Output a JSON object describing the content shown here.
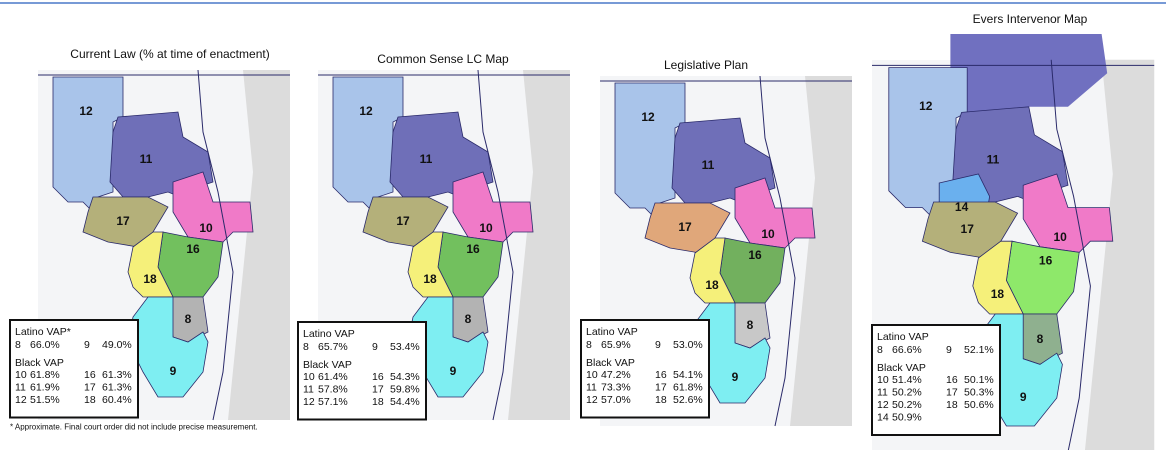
{
  "panels": [
    {
      "title": "Current Law (% at time of enactment)",
      "districts": [
        {
          "label": "12",
          "color": "#a9c4ea"
        },
        {
          "label": "11",
          "color": "#6f6fb8"
        },
        {
          "label": "10",
          "color": "#f07ac8"
        },
        {
          "label": "17",
          "color": "#b4b07a"
        },
        {
          "label": "16",
          "color": "#72c05e"
        },
        {
          "label": "18",
          "color": "#f5f07a"
        },
        {
          "label": "8",
          "color": "#b3b3b3"
        },
        {
          "label": "9",
          "color": "#7eeef2"
        }
      ],
      "latino_label": "Latino VAP*",
      "latino": [
        [
          "8",
          "66.0%"
        ],
        [
          "9",
          "49.0%"
        ]
      ],
      "black_label": "Black VAP",
      "black": [
        [
          [
            "10",
            "61.8%"
          ],
          [
            "16",
            "61.3%"
          ]
        ],
        [
          [
            "11",
            "61.9%"
          ],
          [
            "17",
            "61.3%"
          ]
        ],
        [
          [
            "12",
            "51.5%"
          ],
          [
            "18",
            "60.4%"
          ]
        ]
      ],
      "footnote": "* Approximate. Final court order did not include precise measurement."
    },
    {
      "title": "Common Sense LC Map",
      "districts": [
        {
          "label": "12",
          "color": "#a9c4ea"
        },
        {
          "label": "11",
          "color": "#6f6fb8"
        },
        {
          "label": "10",
          "color": "#f07ac8"
        },
        {
          "label": "17",
          "color": "#b4b07a"
        },
        {
          "label": "16",
          "color": "#72c05e"
        },
        {
          "label": "18",
          "color": "#f5f07a"
        },
        {
          "label": "8",
          "color": "#b3b3b3"
        },
        {
          "label": "9",
          "color": "#7eeef2"
        }
      ],
      "latino_label": "Latino VAP",
      "latino": [
        [
          "8",
          "65.7%"
        ],
        [
          "9",
          "53.4%"
        ]
      ],
      "black_label": "Black VAP",
      "black": [
        [
          [
            "10",
            "61.4%"
          ],
          [
            "16",
            "54.3%"
          ]
        ],
        [
          [
            "11",
            "57.8%"
          ],
          [
            "17",
            "59.8%"
          ]
        ],
        [
          [
            "12",
            "57.1%"
          ],
          [
            "18",
            "54.4%"
          ]
        ]
      ]
    },
    {
      "title": "Legislative Plan",
      "districts": [
        {
          "label": "12",
          "color": "#a9c4ea"
        },
        {
          "label": "11",
          "color": "#6f6fb8"
        },
        {
          "label": "10",
          "color": "#f07ac8"
        },
        {
          "label": "17",
          "color": "#e0a77a"
        },
        {
          "label": "16",
          "color": "#72b05e"
        },
        {
          "label": "18",
          "color": "#f5f07a"
        },
        {
          "label": "8",
          "color": "#c8c8c8"
        },
        {
          "label": "9",
          "color": "#7eeef2"
        }
      ],
      "latino_label": "Latino VAP",
      "latino": [
        [
          "8",
          "65.9%"
        ],
        [
          "9",
          "53.0%"
        ]
      ],
      "black_label": "Black VAP",
      "black": [
        [
          [
            "10",
            "47.2%"
          ],
          [
            "16",
            "54.1%"
          ]
        ],
        [
          [
            "11",
            "73.3%"
          ],
          [
            "17",
            "61.8%"
          ]
        ],
        [
          [
            "12",
            "57.0%"
          ],
          [
            "18",
            "52.6%"
          ]
        ]
      ]
    },
    {
      "title": "Evers Intervenor Map",
      "districts": [
        {
          "label": "12",
          "color": "#a9c4ea"
        },
        {
          "label": "11",
          "color": "#6f6fb8"
        },
        {
          "label": "14",
          "color": "#6ab0ee"
        },
        {
          "label": "10",
          "color": "#f07ac8"
        },
        {
          "label": "17",
          "color": "#b4b07a"
        },
        {
          "label": "16",
          "color": "#8ee86a"
        },
        {
          "label": "18",
          "color": "#f5f07a"
        },
        {
          "label": "8",
          "color": "#8fb08f"
        },
        {
          "label": "9",
          "color": "#7eeef2"
        }
      ],
      "latino_label": "Latino VAP",
      "latino": [
        [
          "8",
          "66.6%"
        ],
        [
          "9",
          "52.1%"
        ]
      ],
      "black_label": "Black VAP",
      "black": [
        [
          [
            "10",
            "51.4%"
          ],
          [
            "16",
            "50.1%"
          ]
        ],
        [
          [
            "11",
            "50.2%"
          ],
          [
            "17",
            "50.3%"
          ]
        ],
        [
          [
            "12",
            "50.2%"
          ],
          [
            "18",
            "50.6%"
          ]
        ],
        [
          [
            "14",
            "50.9%"
          ]
        ]
      ]
    }
  ]
}
